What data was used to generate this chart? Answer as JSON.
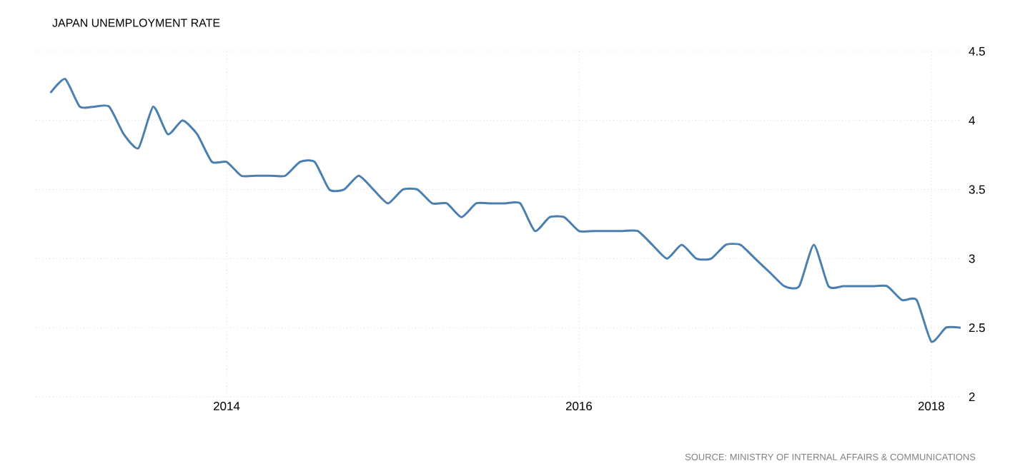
{
  "chart_data": {
    "type": "line",
    "title": "JAPAN UNEMPLOYMENT RATE",
    "annotations": [
      "SOURCE: MINISTRY OF INTERNAL AFFAIRS & COMMUNICATIONS"
    ],
    "x": [
      "2013-01",
      "2013-02",
      "2013-03",
      "2013-04",
      "2013-05",
      "2013-06",
      "2013-07",
      "2013-08",
      "2013-09",
      "2013-10",
      "2013-11",
      "2013-12",
      "2014-01",
      "2014-02",
      "2014-03",
      "2014-04",
      "2014-05",
      "2014-06",
      "2014-07",
      "2014-08",
      "2014-09",
      "2014-10",
      "2014-11",
      "2014-12",
      "2015-01",
      "2015-02",
      "2015-03",
      "2015-04",
      "2015-05",
      "2015-06",
      "2015-07",
      "2015-08",
      "2015-09",
      "2015-10",
      "2015-11",
      "2015-12",
      "2016-01",
      "2016-02",
      "2016-03",
      "2016-04",
      "2016-05",
      "2016-06",
      "2016-07",
      "2016-08",
      "2016-09",
      "2016-10",
      "2016-11",
      "2016-12",
      "2017-01",
      "2017-02",
      "2017-03",
      "2017-04",
      "2017-05",
      "2017-06",
      "2017-07",
      "2017-08",
      "2017-09",
      "2017-10",
      "2017-11",
      "2017-12",
      "2018-01",
      "2018-02",
      "2018-03"
    ],
    "series": [
      {
        "color": "#4a7fb0",
        "values": [
          4.2,
          4.3,
          4.1,
          4.1,
          4.1,
          3.9,
          3.8,
          4.1,
          3.9,
          4.0,
          3.9,
          3.7,
          3.7,
          3.6,
          3.6,
          3.6,
          3.6,
          3.7,
          3.7,
          3.5,
          3.5,
          3.6,
          3.5,
          3.4,
          3.5,
          3.5,
          3.4,
          3.4,
          3.3,
          3.4,
          3.4,
          3.4,
          3.4,
          3.2,
          3.3,
          3.3,
          3.2,
          3.2,
          3.2,
          3.2,
          3.2,
          3.1,
          3.0,
          3.1,
          3.0,
          3.0,
          3.1,
          3.1,
          3.0,
          2.9,
          2.8,
          2.8,
          3.1,
          2.8,
          2.8,
          2.8,
          2.8,
          2.8,
          2.7,
          2.7,
          2.4,
          2.5,
          2.5
        ]
      }
    ],
    "xlim": [
      "2012-12",
      "2018-03"
    ],
    "ylim": [
      2,
      4.5
    ],
    "xticks": [
      {
        "value": "2014",
        "label": "2014"
      },
      {
        "value": "2016",
        "label": "2016"
      },
      {
        "value": "2018",
        "label": "2018"
      }
    ],
    "yticks": [
      2,
      2.5,
      3,
      3.5,
      4,
      4.5
    ],
    "grid": true,
    "line_style": "solid",
    "marker": "none"
  }
}
